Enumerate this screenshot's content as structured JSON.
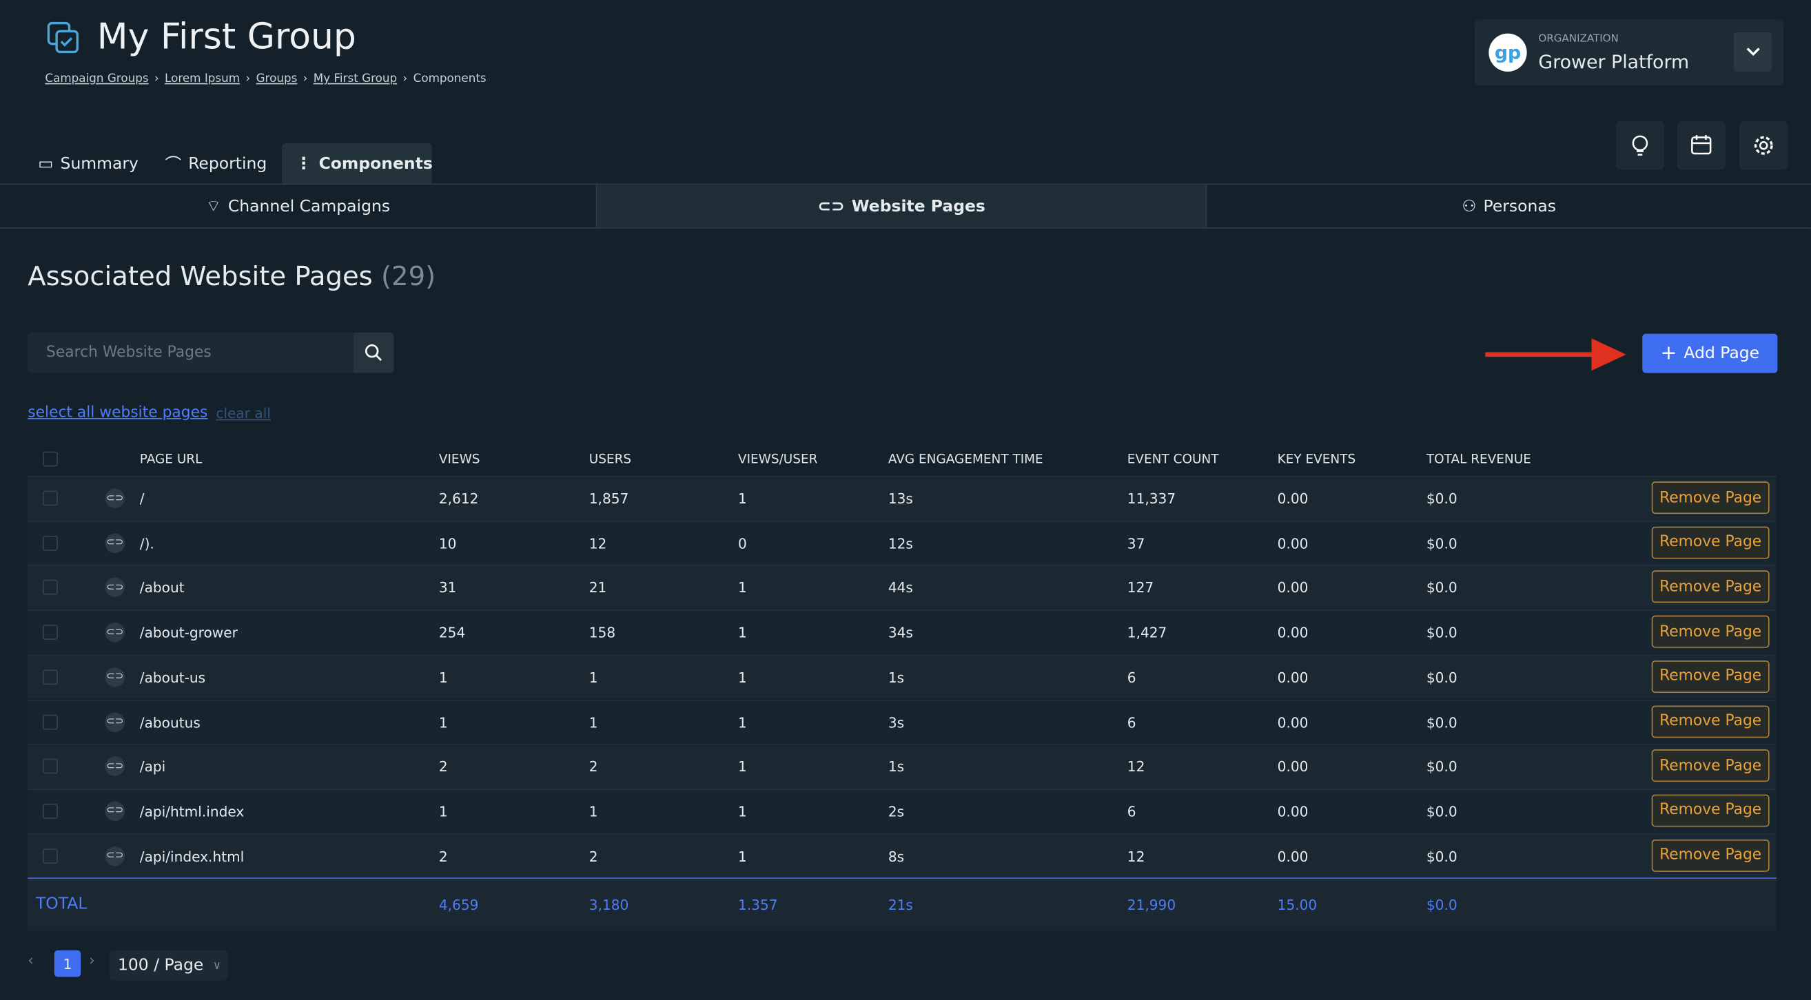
{
  "header": {
    "title": "My First Group",
    "breadcrumbs": [
      "Campaign Groups",
      "Lorem Ipsum",
      "Groups",
      "My First Group",
      "Components"
    ],
    "organization": {
      "label": "ORGANIZATION",
      "name": "Grower Platform"
    }
  },
  "tabs": [
    "Summary",
    "Reporting",
    "Components"
  ],
  "subtabs": [
    "Channel Campaigns",
    "Website Pages",
    "Personas"
  ],
  "section": {
    "title": "Associated Website Pages",
    "count": "(29)",
    "search_placeholder": "Search Website Pages",
    "add_button": "Add Page",
    "select_all": "select all website pages",
    "clear_all": "clear all"
  },
  "table": {
    "columns": [
      "PAGE URL",
      "VIEWS",
      "USERS",
      "VIEWS/USER",
      "AVG ENGAGEMENT TIME",
      "EVENT COUNT",
      "KEY EVENTS",
      "TOTAL REVENUE"
    ],
    "rows": [
      [
        "/",
        "2,612",
        "1,857",
        "1",
        "13s",
        "11,337",
        "0.00",
        "$0.0"
      ],
      [
        "/).",
        "10",
        "12",
        "0",
        "12s",
        "37",
        "0.00",
        "$0.0"
      ],
      [
        "/about",
        "31",
        "21",
        "1",
        "44s",
        "127",
        "0.00",
        "$0.0"
      ],
      [
        "/about-grower",
        "254",
        "158",
        "1",
        "34s",
        "1,427",
        "0.00",
        "$0.0"
      ],
      [
        "/about-us",
        "1",
        "1",
        "1",
        "1s",
        "6",
        "0.00",
        "$0.0"
      ],
      [
        "/aboutus",
        "1",
        "1",
        "1",
        "3s",
        "6",
        "0.00",
        "$0.0"
      ],
      [
        "/api",
        "2",
        "2",
        "1",
        "1s",
        "12",
        "0.00",
        "$0.0"
      ],
      [
        "/api/html.index",
        "1",
        "1",
        "1",
        "2s",
        "6",
        "0.00",
        "$0.0"
      ],
      [
        "/api/index.html",
        "2",
        "2",
        "1",
        "8s",
        "12",
        "0.00",
        "$0.0"
      ]
    ],
    "row_action": "Remove Page",
    "total": [
      "TOTAL",
      "4,659",
      "3,180",
      "1.357",
      "21s",
      "21,990",
      "15.00",
      "$0.0"
    ]
  },
  "pagination": {
    "page": "1",
    "page_size": "100 / Page"
  }
}
